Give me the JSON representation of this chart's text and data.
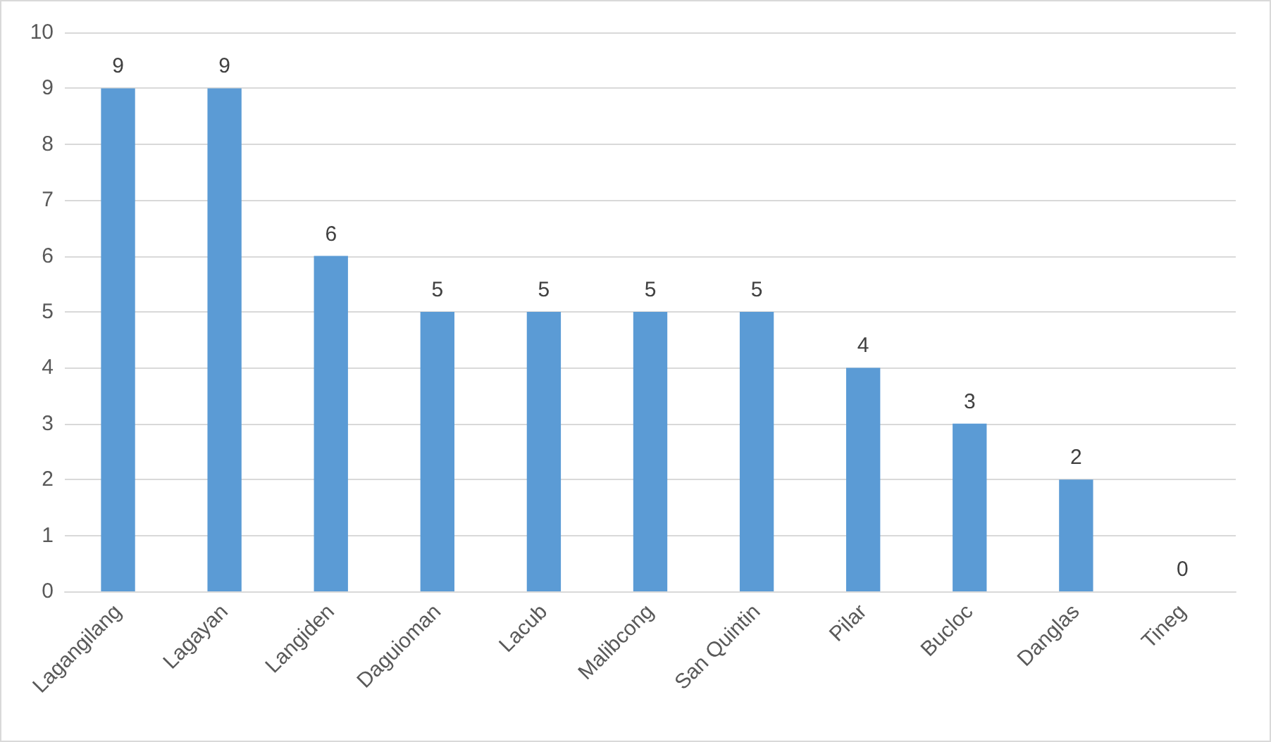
{
  "chart_data": {
    "type": "bar",
    "categories": [
      "Lagangilang",
      "Lagayan",
      "Langiden",
      "Daguioman",
      "Lacub",
      "Malibcong",
      "San Quintin",
      "Pilar",
      "Bucloc",
      "Danglas",
      "Tineg"
    ],
    "values": [
      9,
      9,
      6,
      5,
      5,
      5,
      5,
      4,
      3,
      2,
      0
    ],
    "color": "#5b9bd5",
    "ylim": [
      0,
      10
    ],
    "yticks": [
      0,
      1,
      2,
      3,
      4,
      5,
      6,
      7,
      8,
      9,
      10
    ],
    "grid": "y",
    "data_labels": true
  }
}
